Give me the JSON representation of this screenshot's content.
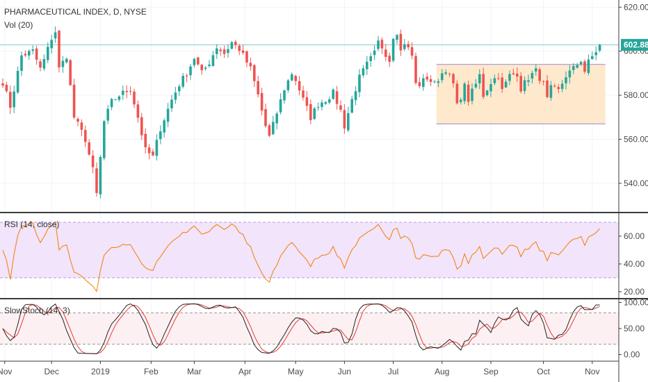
{
  "chart_data": {
    "title": "PHARMACEUTICAL INDEX, D, NYSE",
    "volume_label": "Vol (20)",
    "type": "candlestick",
    "x_ticks": [
      "Nov",
      "Dec",
      "2019",
      "Feb",
      "Mar",
      "Apr",
      "May",
      "Jun",
      "Jul",
      "Aug",
      "Sep",
      "Oct",
      "Nov"
    ],
    "price_axis": {
      "ticks": [
        "540.00",
        "560.00",
        "580.00",
        "600.00",
        "620.00"
      ],
      "tick_values": [
        540,
        560,
        580,
        600,
        620
      ],
      "ylim": [
        528,
        622
      ]
    },
    "last_price": {
      "label": "602.88",
      "value": 602.88
    },
    "price_waypoints": [
      [
        0,
        586
      ],
      [
        2,
        575
      ],
      [
        5,
        598
      ],
      [
        8,
        600
      ],
      [
        10,
        592
      ],
      [
        11,
        596
      ],
      [
        13,
        606
      ],
      [
        14,
        609
      ],
      [
        15,
        592
      ],
      [
        17,
        598
      ],
      [
        19,
        570
      ],
      [
        22,
        560
      ],
      [
        24,
        546
      ],
      [
        25,
        535
      ],
      [
        27,
        568
      ],
      [
        29,
        577
      ],
      [
        31,
        580
      ],
      [
        34,
        583
      ],
      [
        36,
        570
      ],
      [
        38,
        555
      ],
      [
        40,
        552
      ],
      [
        42,
        565
      ],
      [
        45,
        578
      ],
      [
        47,
        585
      ],
      [
        49,
        590
      ],
      [
        51,
        597
      ],
      [
        53,
        590
      ],
      [
        55,
        595
      ],
      [
        57,
        602
      ],
      [
        59,
        599
      ],
      [
        61,
        604
      ],
      [
        63,
        601
      ],
      [
        64,
        598
      ],
      [
        66,
        592
      ],
      [
        68,
        580
      ],
      [
        70,
        566
      ],
      [
        71,
        561
      ],
      [
        73,
        572
      ],
      [
        75,
        583
      ],
      [
        77,
        590
      ],
      [
        78,
        587
      ],
      [
        80,
        578
      ],
      [
        82,
        570
      ],
      [
        84,
        576
      ],
      [
        86,
        578
      ],
      [
        88,
        581
      ],
      [
        90,
        573
      ],
      [
        91,
        566
      ],
      [
        93,
        578
      ],
      [
        95,
        588
      ],
      [
        97,
        594
      ],
      [
        99,
        599
      ],
      [
        100,
        604
      ],
      [
        101,
        602
      ],
      [
        103,
        596
      ],
      [
        104,
        607
      ],
      [
        105,
        609
      ],
      [
        106,
        600
      ],
      [
        107,
        604
      ],
      [
        109,
        598
      ],
      [
        110,
        585
      ],
      [
        111,
        585
      ],
      [
        113,
        588
      ],
      [
        115,
        585
      ],
      [
        117,
        590
      ],
      [
        118,
        592
      ],
      [
        120,
        585
      ],
      [
        121,
        575
      ],
      [
        123,
        584
      ],
      [
        124,
        578
      ],
      [
        126,
        585
      ],
      [
        127,
        589
      ],
      [
        128,
        580
      ],
      [
        130,
        586
      ],
      [
        132,
        589
      ],
      [
        133,
        582
      ],
      [
        135,
        589
      ],
      [
        137,
        590
      ],
      [
        138,
        583
      ],
      [
        140,
        588
      ],
      [
        142,
        591
      ],
      [
        144,
        585
      ],
      [
        145,
        578
      ],
      [
        146,
        583
      ],
      [
        148,
        582
      ],
      [
        150,
        589
      ],
      [
        152,
        592
      ],
      [
        154,
        596
      ],
      [
        155,
        591
      ],
      [
        156,
        595
      ],
      [
        158,
        600
      ],
      [
        159,
        604
      ]
    ],
    "rectangle": {
      "upper": 594,
      "lower": 567
    },
    "rsi": {
      "label": "RSI (14, close)",
      "ticks": [
        "20.00",
        "40.00",
        "60.00"
      ],
      "tick_values": [
        20,
        40,
        60
      ],
      "band": [
        30,
        70
      ],
      "ylim": [
        16,
        75
      ]
    },
    "slow_stoch": {
      "label": "SlowStoch (14, 3)",
      "ticks": [
        "0.00",
        "50.00",
        "100.00"
      ],
      "tick_values": [
        0,
        50,
        100
      ],
      "band": [
        20,
        80
      ],
      "ylim": [
        -10,
        102
      ]
    },
    "colors": {
      "up": "#26a69a",
      "down": "#ef5350",
      "last_price_line": "#80cbc4",
      "last_price_tag": "#26a69a",
      "rectangle_fill": "#ffe9cc",
      "rectangle_border": "#9c88d6",
      "rsi_line": "#f57c00",
      "rsi_band": "#f1e4fb",
      "rsi_dash": "#b39ddb",
      "stoch_k": "#222222",
      "stoch_d": "#e53935",
      "stoch_band": "#fdf0f2",
      "stoch_dash": "#999999"
    }
  }
}
